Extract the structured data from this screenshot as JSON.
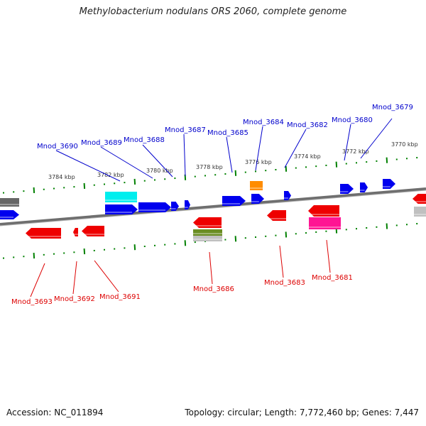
{
  "title": "Methylobacterium nodulans ORS 2060, complete genome",
  "footer": {
    "accession": "Accession: NC_011894",
    "summary": "Topology: circular; Length: 7,772,460 bp; Genes: 7,447"
  },
  "colors": {
    "forward_label": "#0000cc",
    "reverse_label": "#dd0000",
    "tick": "#008000",
    "backbone": "#808080",
    "gene_forward": "#0000ee",
    "gene_reverse": "#ee0000",
    "rna_cyan": "#00eeee",
    "orange": "#ff8c00",
    "olive": "#6b8e23",
    "magenta": "#ff1493",
    "gray_feature": "#888888"
  },
  "scale_labels": [
    "3784 kbp",
    "3782 kbp",
    "3780 kbp",
    "3778 kbp",
    "3776 kbp",
    "3774 kbp",
    "3772 kbp",
    "3770 kbp"
  ],
  "forward_genes": [
    {
      "label": "Mnod_3690"
    },
    {
      "label": "Mnod_3689"
    },
    {
      "label": "Mnod_3688"
    },
    {
      "label": "Mnod_3687"
    },
    {
      "label": "Mnod_3685"
    },
    {
      "label": "Mnod_3684"
    },
    {
      "label": "Mnod_3682"
    },
    {
      "label": "Mnod_3680"
    },
    {
      "label": "Mnod_3679"
    }
  ],
  "reverse_genes": [
    {
      "label": "Mnod_3693"
    },
    {
      "label": "Mnod_3692"
    },
    {
      "label": "Mnod_3691"
    },
    {
      "label": "Mnod_3686"
    },
    {
      "label": "Mnod_3683"
    },
    {
      "label": "Mnod_3681"
    }
  ]
}
